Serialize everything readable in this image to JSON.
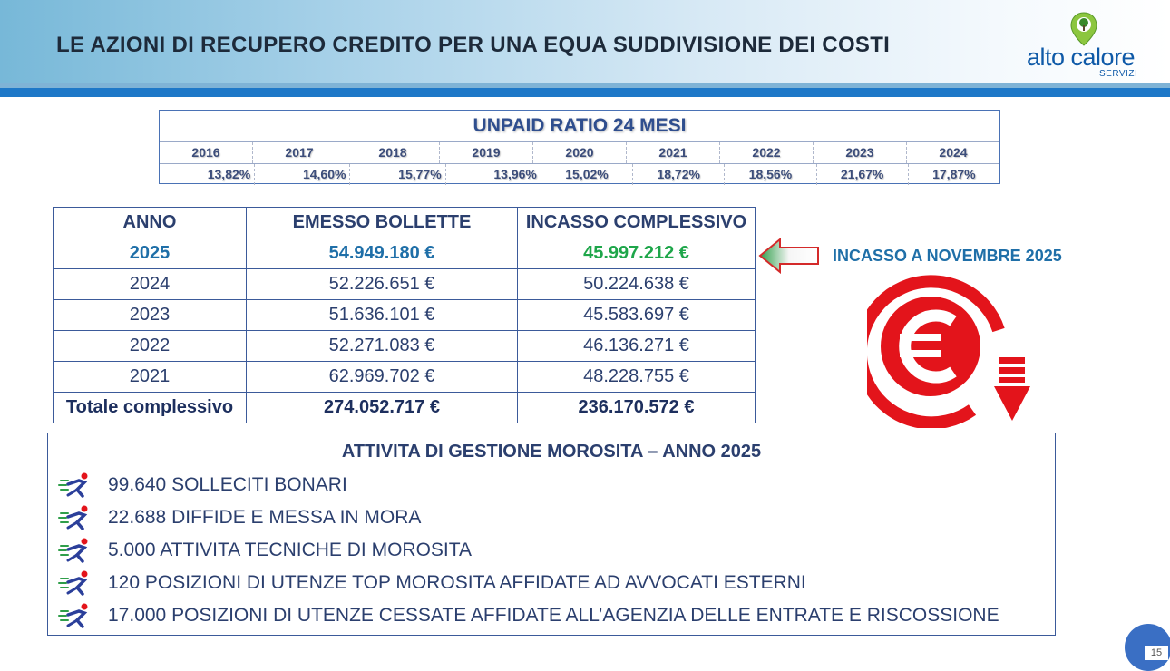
{
  "header": {
    "title": "LE AZIONI DI RECUPERO CREDITO PER UNA EQUA SUDDIVISIONE DEI COSTI",
    "logo_text": "alto calore",
    "logo_sub": "SERVIZI"
  },
  "unpaid_ratio": {
    "title": "UNPAID RATIO 24 MESI",
    "years": [
      "2016",
      "2017",
      "2018",
      "2019",
      "2020",
      "2021",
      "2022",
      "2023",
      "2024"
    ],
    "values": [
      "13,82%",
      "14,60%",
      "15,77%",
      "13,96%",
      "15,02%",
      "18,72%",
      "18,56%",
      "21,67%",
      "17,87%"
    ]
  },
  "main_table": {
    "headers": [
      "ANNO",
      "EMESSO BOLLETTE",
      "INCASSO COMPLESSIVO"
    ],
    "rows": [
      [
        "2025",
        "54.949.180 €",
        "45.997.212 €"
      ],
      [
        "2024",
        "52.226.651 €",
        "50.224.638 €"
      ],
      [
        "2023",
        "51.636.101 €",
        "45.583.697 €"
      ],
      [
        "2022",
        "52.271.083 €",
        "46.136.271 €"
      ],
      [
        "2021",
        "62.969.702 €",
        "48.228.755 €"
      ]
    ],
    "total": [
      "Totale complessivo",
      "274.052.717 €",
      "236.170.572 €"
    ]
  },
  "incasso_note": "INCASSO A NOVEMBRE 2025",
  "activity": {
    "title": "ATTIVITA DI GESTIONE MOROSITA – ANNO 2025",
    "items": [
      "99.640 SOLLECITI BONARI",
      "22.688 DIFFIDE E MESSA IN MORA",
      "5.000 ATTIVITA TECNICHE DI MOROSITA",
      "120 POSIZIONI DI UTENZE TOP MOROSITA AFFIDATE AD AVVOCATI ESTERNI",
      "17.000 POSIZIONI DI UTENZE CESSATE AFFIDATE ALL’AGENZIA DELLE ENTRATE E RISCOSSIONE"
    ]
  },
  "page_number": "15",
  "colors": {
    "accent_blue": "#1e78c8",
    "highlight_green": "#1ea64a",
    "euro_red": "#e3141b"
  }
}
